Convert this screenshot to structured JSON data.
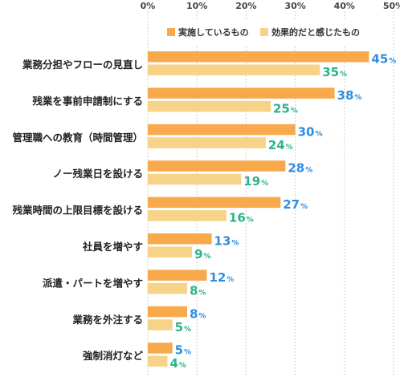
{
  "chart_data": {
    "type": "bar",
    "orientation": "horizontal",
    "categories": [
      "業務分担やフローの見直し",
      "残業を事前申請制にする",
      "管理職への教育（時間管理）",
      "ノー残業日を設ける",
      "残業時間の上限目標を設ける",
      "社員を増やす",
      "派遣・パートを増やす",
      "業務を外注する",
      "強制消灯など"
    ],
    "series": [
      {
        "name": "実施しているもの",
        "values": [
          45,
          38,
          30,
          28,
          27,
          13,
          12,
          8,
          5
        ],
        "color": "#f7a94b",
        "label_color": "#2f8de0"
      },
      {
        "name": "効果的だと感じたもの",
        "values": [
          35,
          25,
          24,
          19,
          16,
          9,
          8,
          5,
          4
        ],
        "color": "#f7d389",
        "label_color": "#2bb38a"
      }
    ],
    "xlim": [
      0,
      50
    ],
    "ticks": [
      0,
      10,
      20,
      30,
      40,
      50
    ],
    "tick_labels": [
      "0%",
      "10%",
      "20%",
      "30%",
      "40%",
      "50%"
    ],
    "value_suffix": "%",
    "grid": true,
    "legend_position": "top"
  }
}
